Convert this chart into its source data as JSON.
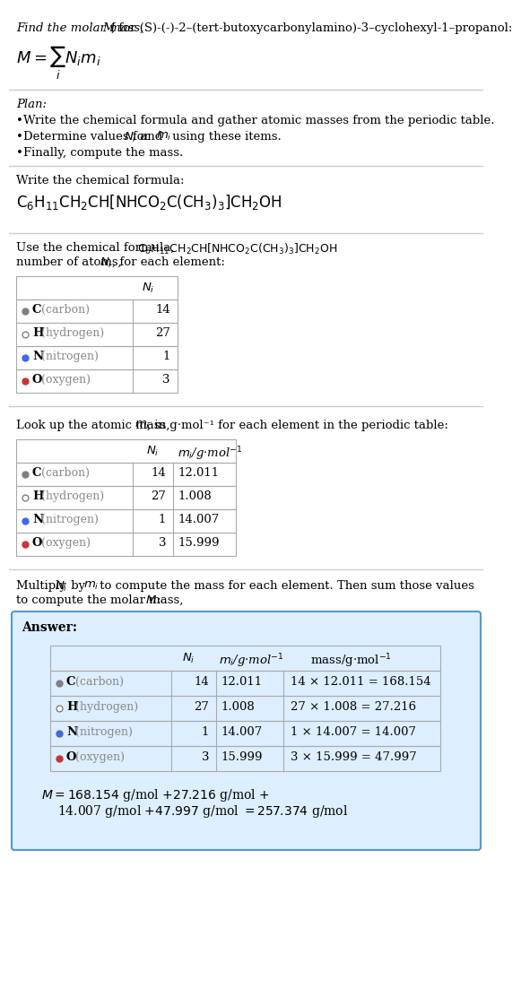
{
  "title_line1": "Find the molar mass, M",
  "title_line2": ", for (S)-(-)-2-(tert-butoxycarbonylamino)-3-cyclohexyl-1-propanol:",
  "formula_eq": "M = ∑ Nᵢmᵢ",
  "formula_eq_sub": "i",
  "plan_header": "Plan:",
  "plan_bullets": [
    "Write the chemical formula and gather atomic masses from the periodic table.",
    "Determine values for Nᵢ and mᵢ using these items.",
    "Finally, compute the mass."
  ],
  "chem_formula_header": "Write the chemical formula:",
  "chem_formula": "C₆H₁₁CH₂CH[NHCO₂C(CH₃)₃]CH₂OH",
  "count_header_line1": "Use the chemical formula, C₆H₁₁CH₂CH[NHCO₂C(CH₃)₃]CH₂OH, to count the",
  "count_header_line2": "number of atoms, Nᵢ, for each element:",
  "elements": [
    "C (carbon)",
    "H (hydrogen)",
    "N (nitrogen)",
    "O (oxygen)"
  ],
  "element_symbols": [
    "C",
    "H",
    "N",
    "O"
  ],
  "element_colors": [
    "#808080",
    "#ffffff",
    "#4169e1",
    "#cc3333"
  ],
  "element_dot_filled": [
    true,
    false,
    true,
    true
  ],
  "Ni_values": [
    14,
    27,
    1,
    3
  ],
  "mi_values": [
    12.011,
    1.008,
    14.007,
    15.999
  ],
  "mass_values": [
    168.154,
    27.216,
    14.007,
    47.997
  ],
  "lookup_header": "Look up the atomic mass, mᵢ, in g·mol⁻¹ for each element in the periodic table:",
  "multiply_header_line1": "Multiply Nᵢ by mᵢ to compute the mass for each element. Then sum those values",
  "multiply_header_line2": "to compute the molar mass, M:",
  "answer_label": "Answer:",
  "final_eq_line1": "M = 168.154 g/mol + 27.216 g/mol +",
  "final_eq_line2": "14.007 g/mol + 47.997 g/mol = 257.374 g/mol",
  "answer_box_color": "#ddeeff",
  "answer_box_border": "#5599cc",
  "table_border_color": "#aaaaaa",
  "bg_color": "#ffffff",
  "text_color": "#000000"
}
